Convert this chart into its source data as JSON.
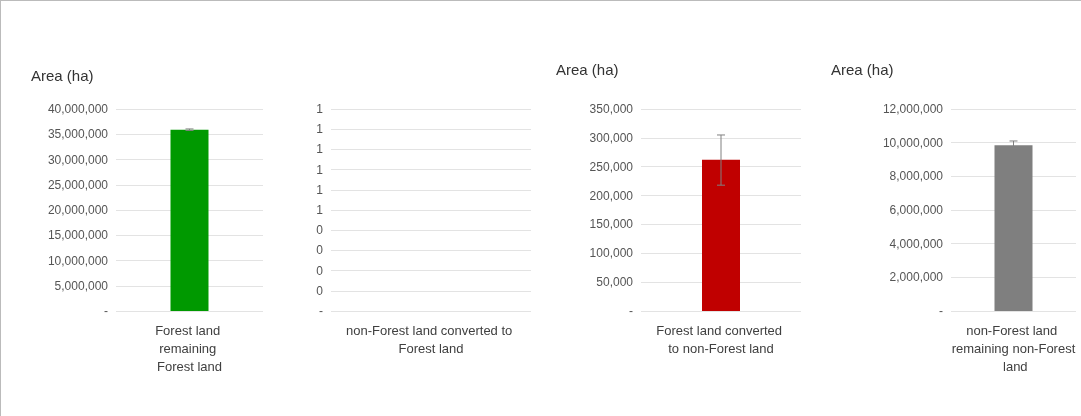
{
  "chart_data": [
    {
      "type": "bar",
      "ylabel": "Area (ha)",
      "categories": [
        "Forest land remaining Forest land"
      ],
      "values": [
        35900000
      ],
      "errors": [
        150000
      ],
      "color": "#009900",
      "ylim": [
        0,
        40000000
      ],
      "yticks": [
        {
          "value": 0,
          "label": "-"
        },
        {
          "value": 5000000,
          "label": "5,000,000"
        },
        {
          "value": 10000000,
          "label": "10,000,000"
        },
        {
          "value": 15000000,
          "label": "15,000,000"
        },
        {
          "value": 20000000,
          "label": "20,000,000"
        },
        {
          "value": 25000000,
          "label": "25,000,000"
        },
        {
          "value": 30000000,
          "label": "30,000,000"
        },
        {
          "value": 35000000,
          "label": "35,000,000"
        },
        {
          "value": 40000000,
          "label": "40,000,000"
        }
      ],
      "grid": "y"
    },
    {
      "type": "bar",
      "categories": [
        "non-Forest land converted to Forest land"
      ],
      "values": [
        0
      ],
      "color": "#4472c4",
      "ylim": [
        0,
        1
      ],
      "yticks": [
        {
          "value": 0,
          "label": "-"
        },
        {
          "value": 0.1,
          "label": "0"
        },
        {
          "value": 0.2,
          "label": "0"
        },
        {
          "value": 0.3,
          "label": "0"
        },
        {
          "value": 0.4,
          "label": "0"
        },
        {
          "value": 0.5,
          "label": "1"
        },
        {
          "value": 0.6,
          "label": "1"
        },
        {
          "value": 0.7,
          "label": "1"
        },
        {
          "value": 0.8,
          "label": "1"
        },
        {
          "value": 0.9,
          "label": "1"
        },
        {
          "value": 1,
          "label": "1"
        }
      ],
      "grid": "y"
    },
    {
      "type": "bar",
      "ylabel": "Area (ha)",
      "categories": [
        "Forest land converted to non-Forest land"
      ],
      "values": [
        262000
      ],
      "errors": [
        [
          218000,
          305000
        ]
      ],
      "color": "#c00000",
      "ylim": [
        0,
        350000
      ],
      "yticks": [
        {
          "value": 0,
          "label": "-"
        },
        {
          "value": 50000,
          "label": "50,000"
        },
        {
          "value": 100000,
          "label": "100,000"
        },
        {
          "value": 150000,
          "label": "150,000"
        },
        {
          "value": 200000,
          "label": "200,000"
        },
        {
          "value": 250000,
          "label": "250,000"
        },
        {
          "value": 300000,
          "label": "300,000"
        },
        {
          "value": 350000,
          "label": "350,000"
        }
      ],
      "grid": "y"
    },
    {
      "type": "bar",
      "ylabel": "Area (ha)",
      "categories": [
        "non-Forest land remaining non-Forest land"
      ],
      "values": [
        9850000
      ],
      "errors": [
        [
          9650000,
          10100000
        ]
      ],
      "color": "#7f7f7f",
      "ylim": [
        0,
        12000000
      ],
      "yticks": [
        {
          "value": 0,
          "label": "-"
        },
        {
          "value": 2000000,
          "label": "2,000,000"
        },
        {
          "value": 4000000,
          "label": "4,000,000"
        },
        {
          "value": 6000000,
          "label": "6,000,000"
        },
        {
          "value": 8000000,
          "label": "8,000,000"
        },
        {
          "value": 10000000,
          "label": "10,000,000"
        },
        {
          "value": 12000000,
          "label": "12,000,000"
        }
      ],
      "grid": "y"
    }
  ]
}
